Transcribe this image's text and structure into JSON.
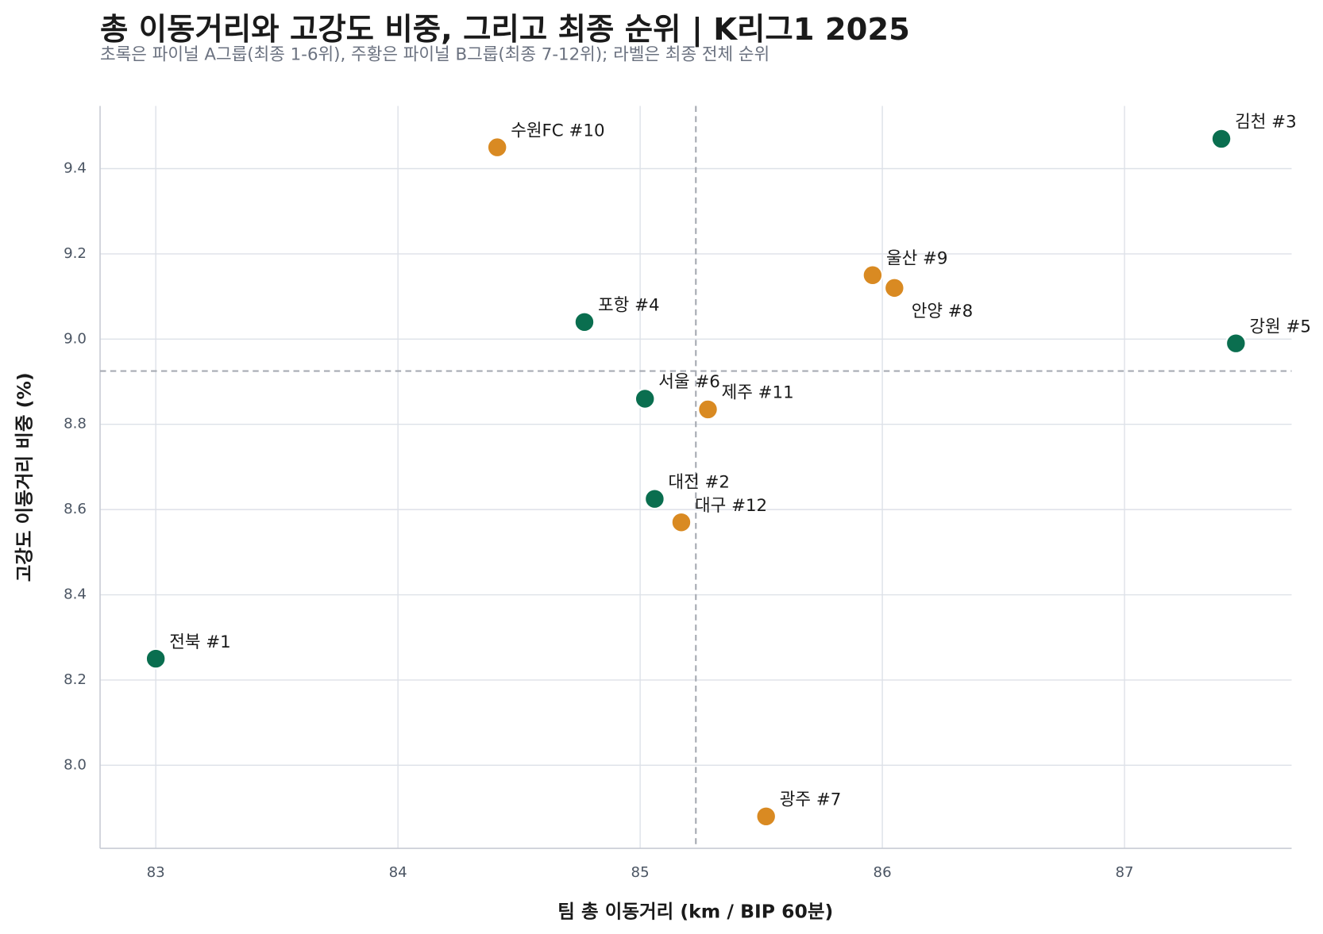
{
  "chart_data": {
    "type": "scatter",
    "title": "총 이동거리와 고강도 비중, 그리고 최종 순위 | K리그1 2025",
    "subtitle": "초록은 파이널 A그룹(최종 1-6위), 주황은 파이널 B그룹(최종 7-12위); 라벨은 최종 전체 순위",
    "x_label": "팀 총 이동거리 (km / BIP 60분)",
    "y_label": "고강도 이동거리 비중 (%)",
    "xlim": [
      82.77,
      87.69
    ],
    "ylim": [
      7.805,
      9.547
    ],
    "xticks": [
      83,
      84,
      85,
      86,
      87
    ],
    "yticks": [
      {
        "value": 8,
        "label": "8.0"
      },
      8.2,
      8.4,
      8.6,
      8.8,
      {
        "value": 9,
        "label": "9.0"
      },
      9.2,
      9.4
    ],
    "grid": true,
    "reference_lines": {
      "x": 85.23,
      "y": 8.925
    },
    "series": [
      {
        "color": "#0a6e4f",
        "x": [
          83.0,
          85.06,
          87.4,
          84.77,
          87.46,
          85.02
        ],
        "values": [
          8.25,
          8.625,
          9.47,
          9.04,
          8.99,
          8.86
        ],
        "labels": [
          "전북 #1",
          "대전 #2",
          "김천 #3",
          "포항 #4",
          "강원 #5",
          "서울 #6"
        ]
      },
      {
        "color": "#d98a22",
        "x": [
          85.52,
          86.05,
          85.96,
          84.41,
          85.28,
          85.17
        ],
        "values": [
          7.88,
          9.12,
          9.15,
          9.45,
          8.835,
          8.57
        ],
        "labels": [
          "광주 #7",
          "안양 #8",
          "울산 #9",
          "수원FC #10",
          "제주 #11",
          "대구 #12"
        ]
      }
    ]
  }
}
